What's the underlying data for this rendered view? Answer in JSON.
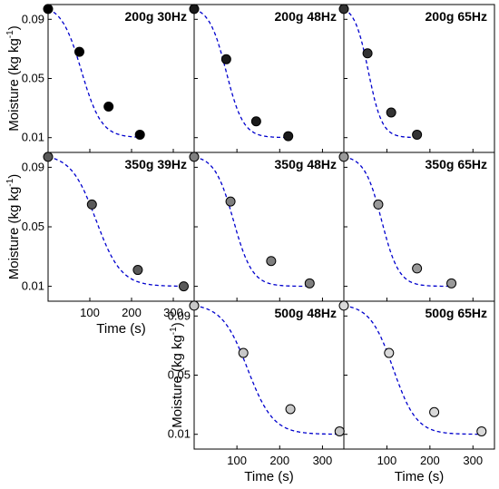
{
  "chart_data": {
    "type": "scatter",
    "title": "",
    "xlabel": "Time (s)",
    "ylabel": "Moisture (kg kg",
    "ylabel_sup": "-1",
    "ylabel_close": ")",
    "xticks": [
      100,
      200,
      300
    ],
    "yticks": [
      0.01,
      0.05,
      0.09
    ],
    "ytick_labels": [
      "0.01",
      "0.05",
      "0.09"
    ],
    "xlim": [
      0,
      350
    ],
    "ylim": [
      0.0,
      0.1
    ],
    "grid": false,
    "legend": "none",
    "panels": [
      {
        "title": "200g 30Hz",
        "marker_color": "#000000",
        "points": [
          {
            "x": 0,
            "y": 0.097
          },
          {
            "x": 75,
            "y": 0.068
          },
          {
            "x": 145,
            "y": 0.031
          },
          {
            "x": 220,
            "y": 0.012
          }
        ],
        "fit": {
          "x0": 80,
          "width": 24,
          "yfinal": 0.01
        }
      },
      {
        "title": "200g 48Hz",
        "marker_color": "#1a1a1a",
        "points": [
          {
            "x": 0,
            "y": 0.097
          },
          {
            "x": 75,
            "y": 0.063
          },
          {
            "x": 145,
            "y": 0.021
          },
          {
            "x": 220,
            "y": 0.011
          }
        ],
        "fit": {
          "x0": 75,
          "width": 20,
          "yfinal": 0.01
        }
      },
      {
        "title": "200g 65Hz",
        "marker_color": "#333333",
        "points": [
          {
            "x": 0,
            "y": 0.097
          },
          {
            "x": 55,
            "y": 0.067
          },
          {
            "x": 110,
            "y": 0.027
          },
          {
            "x": 170,
            "y": 0.012
          }
        ],
        "fit": {
          "x0": 57,
          "width": 16,
          "yfinal": 0.01
        }
      },
      {
        "title": "350g 39Hz",
        "marker_color": "#595959",
        "points": [
          {
            "x": 0,
            "y": 0.097
          },
          {
            "x": 105,
            "y": 0.065
          },
          {
            "x": 215,
            "y": 0.021
          },
          {
            "x": 325,
            "y": 0.01
          }
        ],
        "fit": {
          "x0": 115,
          "width": 30,
          "yfinal": 0.01
        }
      },
      {
        "title": "350g 48Hz",
        "marker_color": "#7f7f7f",
        "points": [
          {
            "x": 0,
            "y": 0.097
          },
          {
            "x": 85,
            "y": 0.067
          },
          {
            "x": 180,
            "y": 0.027
          },
          {
            "x": 270,
            "y": 0.012
          }
        ],
        "fit": {
          "x0": 92,
          "width": 22,
          "yfinal": 0.01
        }
      },
      {
        "title": "350g 65Hz",
        "marker_color": "#999999",
        "points": [
          {
            "x": 0,
            "y": 0.097
          },
          {
            "x": 80,
            "y": 0.065
          },
          {
            "x": 170,
            "y": 0.022
          },
          {
            "x": 250,
            "y": 0.012
          }
        ],
        "fit": {
          "x0": 88,
          "width": 20,
          "yfinal": 0.01
        }
      },
      {
        "title": "500g 48Hz",
        "marker_color": "#c8c8c8",
        "points": [
          {
            "x": 0,
            "y": 0.097
          },
          {
            "x": 115,
            "y": 0.065
          },
          {
            "x": 225,
            "y": 0.027
          },
          {
            "x": 340,
            "y": 0.012
          }
        ],
        "fit": {
          "x0": 125,
          "width": 30,
          "yfinal": 0.01
        }
      },
      {
        "title": "500g 65Hz",
        "marker_color": "#d9d9d9",
        "points": [
          {
            "x": 0,
            "y": 0.097
          },
          {
            "x": 105,
            "y": 0.065
          },
          {
            "x": 210,
            "y": 0.025
          },
          {
            "x": 320,
            "y": 0.012
          }
        ],
        "fit": {
          "x0": 115,
          "width": 27,
          "yfinal": 0.01
        }
      }
    ],
    "fit_line": {
      "style": "dashed",
      "color": "#0000cd"
    },
    "ymax_fit": 0.097
  }
}
